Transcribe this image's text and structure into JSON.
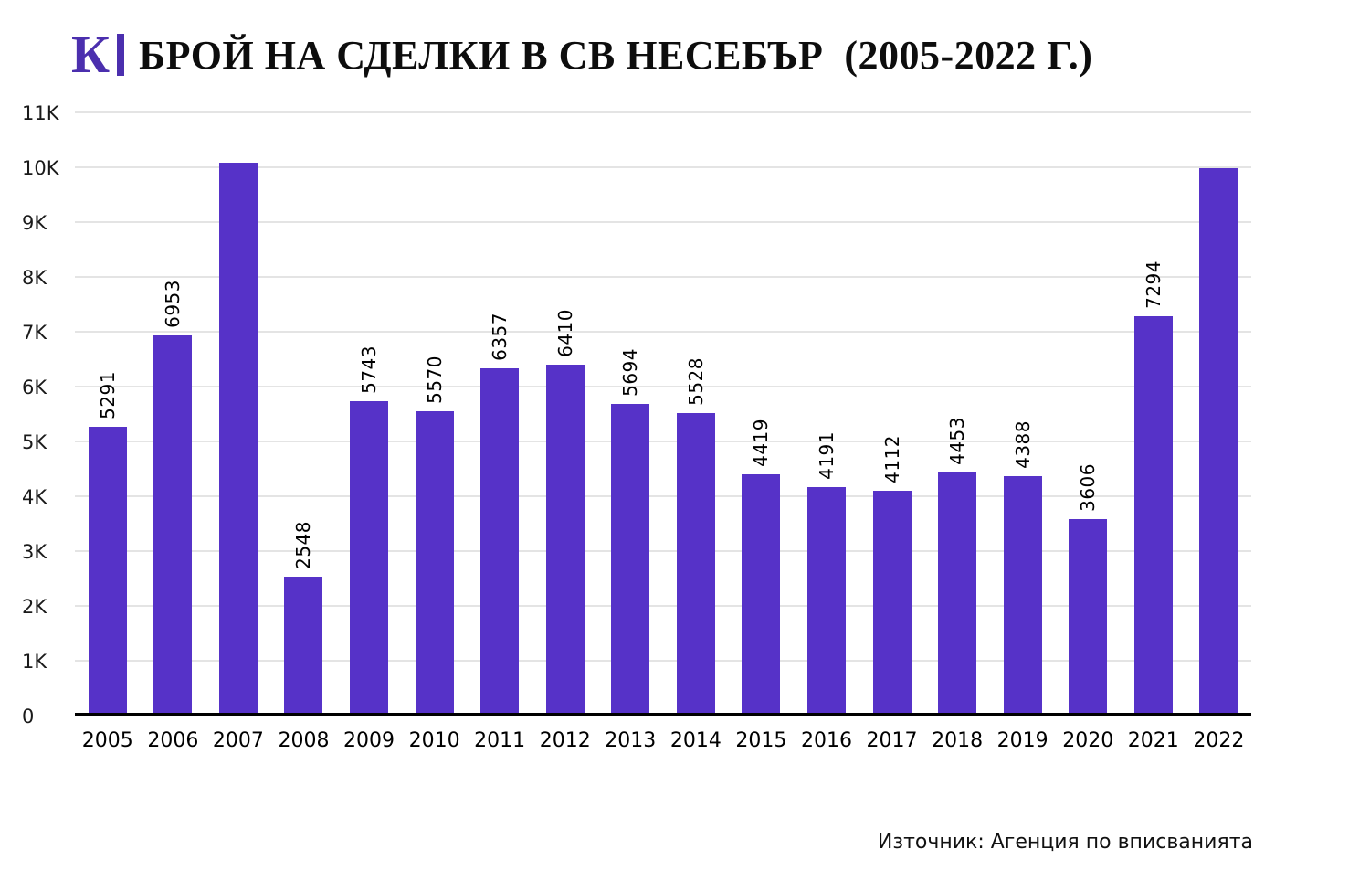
{
  "header": {
    "logo_letter": "К",
    "title": "БРОЙ НА СДЕЛКИ В СВ НЕСЕБЪР  (2005-2022 Г.)"
  },
  "footer": {
    "source": "Източник: Агенция по вписванията"
  },
  "chart_data": {
    "type": "bar",
    "title": "БРОЙ НА СДЕЛКИ В СВ НЕСЕБЪР (2005-2022 Г.)",
    "categories": [
      "2005",
      "2006",
      "2007",
      "2008",
      "2009",
      "2010",
      "2011",
      "2012",
      "2013",
      "2014",
      "2015",
      "2016",
      "2017",
      "2018",
      "2019",
      "2020",
      "2021",
      "2022"
    ],
    "values": [
      5291,
      6953,
      10100,
      2548,
      5743,
      5570,
      6357,
      6410,
      5694,
      5528,
      4419,
      4191,
      4112,
      4453,
      4388,
      3606,
      7294,
      10000
    ],
    "bar_labels": [
      "5291",
      "6953",
      "",
      "2548",
      "5743",
      "5570",
      "6357",
      "6410",
      "5694",
      "5528",
      "4419",
      "4191",
      "4112",
      "4453",
      "4388",
      "3606",
      "7294",
      ""
    ],
    "xlabel": "",
    "ylabel": "",
    "ylim": [
      0,
      11000
    ],
    "y_tick_step": 1000,
    "y_tick_labels": [
      "0",
      "1K",
      "2K",
      "3K",
      "4K",
      "5K",
      "6K",
      "7K",
      "8K",
      "9K",
      "10K",
      "11K"
    ],
    "grid": true,
    "legend": "none",
    "bar_color": "#5632c8",
    "accent_color": "#4b2fae"
  }
}
